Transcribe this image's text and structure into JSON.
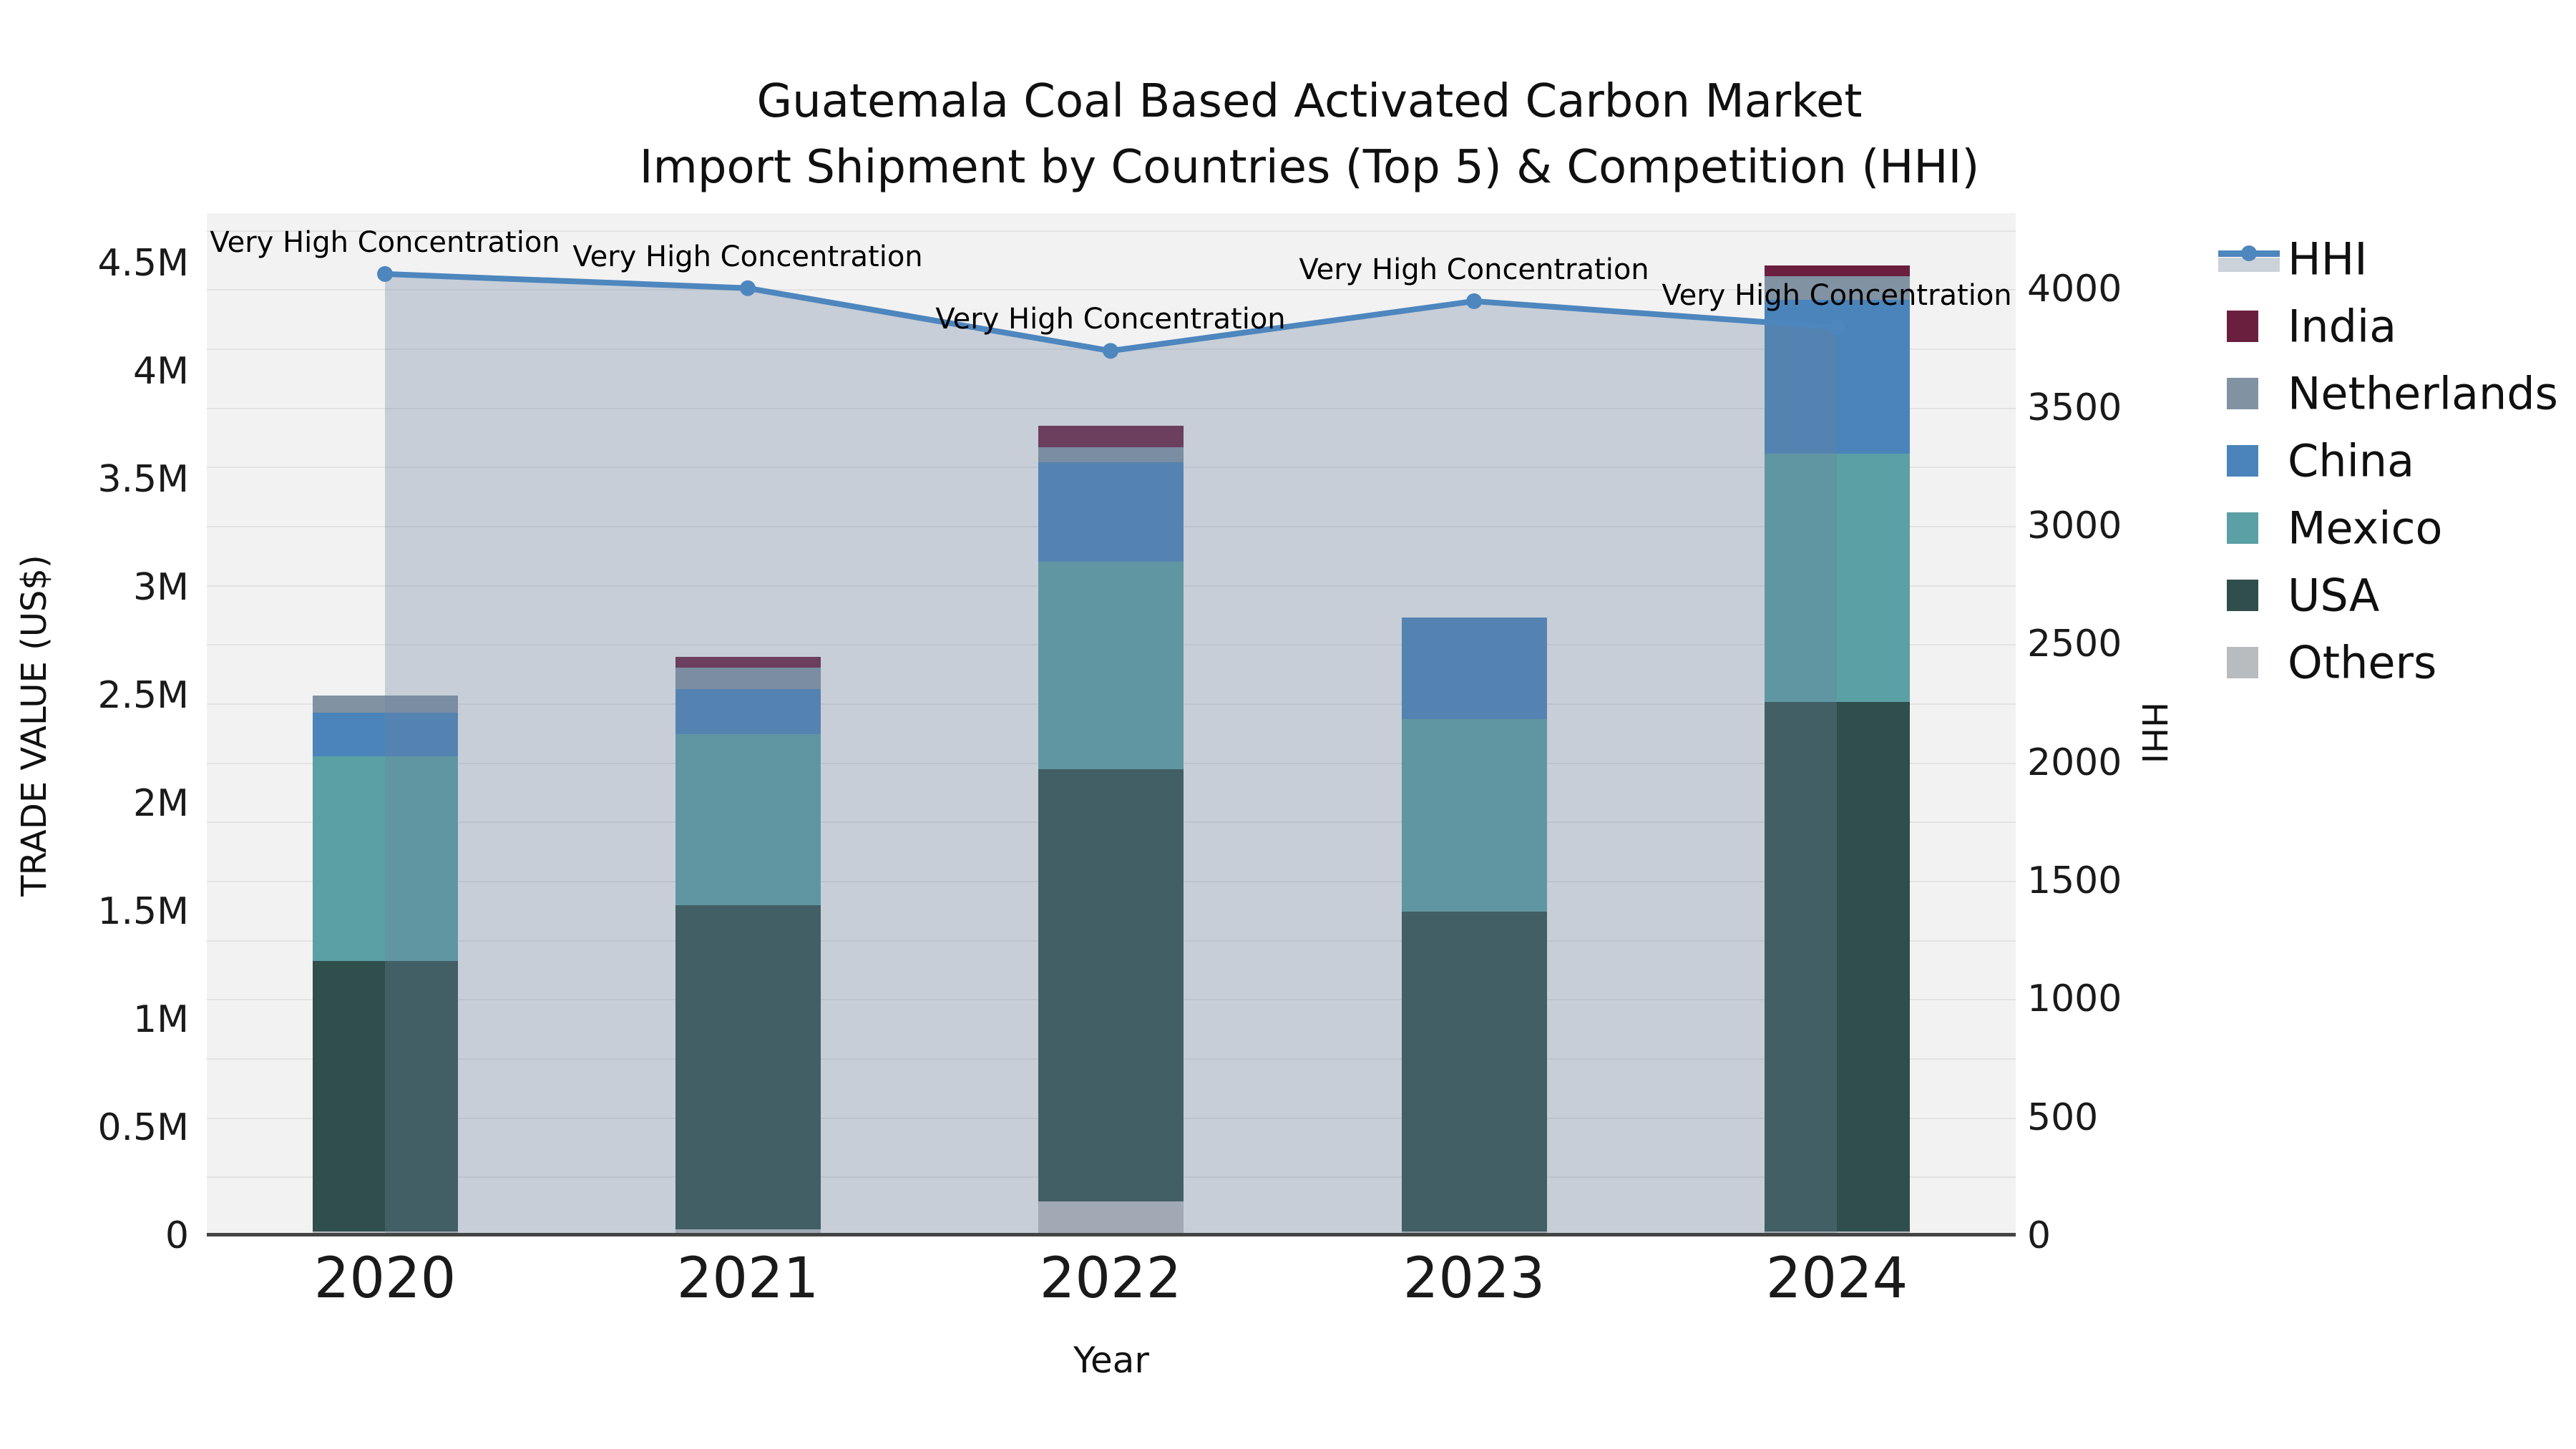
{
  "title": {
    "line1": "Guatemala Coal Based Activated Carbon Market",
    "line2": "Import Shipment by Countries (Top 5) & Competition (HHI)"
  },
  "axes": {
    "x": {
      "title": "Year",
      "ticks": [
        "2020",
        "2021",
        "2022",
        "2023",
        "2024"
      ]
    },
    "y_left": {
      "title": "TRADE VALUE (US$)",
      "ticks": [
        "0",
        "0.5M",
        "1M",
        "1.5M",
        "2M",
        "2.5M",
        "3M",
        "3.5M",
        "4M",
        "4.5M"
      ]
    },
    "y_right": {
      "title": "HHI",
      "ticks": [
        "0",
        "500",
        "1000",
        "1500",
        "2000",
        "2500",
        "3000",
        "3500",
        "4000"
      ]
    }
  },
  "legend": {
    "items": [
      {
        "label": "HHI",
        "color": "#4e86be",
        "swatch": "line"
      },
      {
        "label": "India",
        "color": "#6b1f3f",
        "swatch": "square"
      },
      {
        "label": "Netherlands",
        "color": "#8192a3",
        "swatch": "square"
      },
      {
        "label": "China",
        "color": "#4a84ba",
        "swatch": "square"
      },
      {
        "label": "Mexico",
        "color": "#5ba0a4",
        "swatch": "square"
      },
      {
        "label": "USA",
        "color": "#2f4e4c",
        "swatch": "square"
      },
      {
        "label": "Others",
        "color": "#b8bcbf",
        "swatch": "square"
      }
    ]
  },
  "chart_data": {
    "type": "bar+line",
    "categories": [
      "2020",
      "2021",
      "2022",
      "2023",
      "2024"
    ],
    "bar_value_unit": "TRADE VALUE (US$), millions",
    "stack_order": "bottom_to_top",
    "series": [
      {
        "name": "Others",
        "color": "#b8bcbf",
        "values": [
          0.02,
          0.03,
          0.16,
          0.02,
          0.02
        ]
      },
      {
        "name": "USA",
        "color": "#2f4e4c",
        "values": [
          1.25,
          1.5,
          2.0,
          1.48,
          2.45
        ]
      },
      {
        "name": "Mexico",
        "color": "#5ba0a4",
        "values": [
          0.95,
          0.79,
          0.96,
          0.89,
          1.15
        ]
      },
      {
        "name": "China",
        "color": "#4a84ba",
        "values": [
          0.2,
          0.21,
          0.46,
          0.47,
          0.71
        ]
      },
      {
        "name": "Netherlands",
        "color": "#8192a3",
        "values": [
          0.08,
          0.1,
          0.07,
          0.0,
          0.11
        ]
      },
      {
        "name": "India",
        "color": "#6b1f3f",
        "values": [
          0.0,
          0.05,
          0.1,
          0.0,
          0.05
        ]
      }
    ],
    "bar_totals": [
      2.5,
      2.68,
      3.75,
      2.84,
      4.49
    ],
    "line": {
      "name": "HHI",
      "axis": "right",
      "values": [
        4065,
        4005,
        3740,
        3950,
        3840
      ],
      "color": "#4e86be",
      "area_fill": "rgba(110,130,160,0.32)",
      "markers": true
    },
    "annotations": [
      "Very High Concentration",
      "Very High Concentration",
      "Very High Concentration",
      "Very High Concentration",
      "Very High Concentration"
    ],
    "ylim_left": [
      0,
      4.73
    ],
    "ylim_right": [
      0,
      4325
    ],
    "grid": "horizontal gridlines every 250 HHI units",
    "legend_position": "right"
  },
  "colors": {
    "plot_bg": "#f2f2f2",
    "grid": "#e3e3e3",
    "axis_line": "#444444",
    "text": "#111111"
  }
}
